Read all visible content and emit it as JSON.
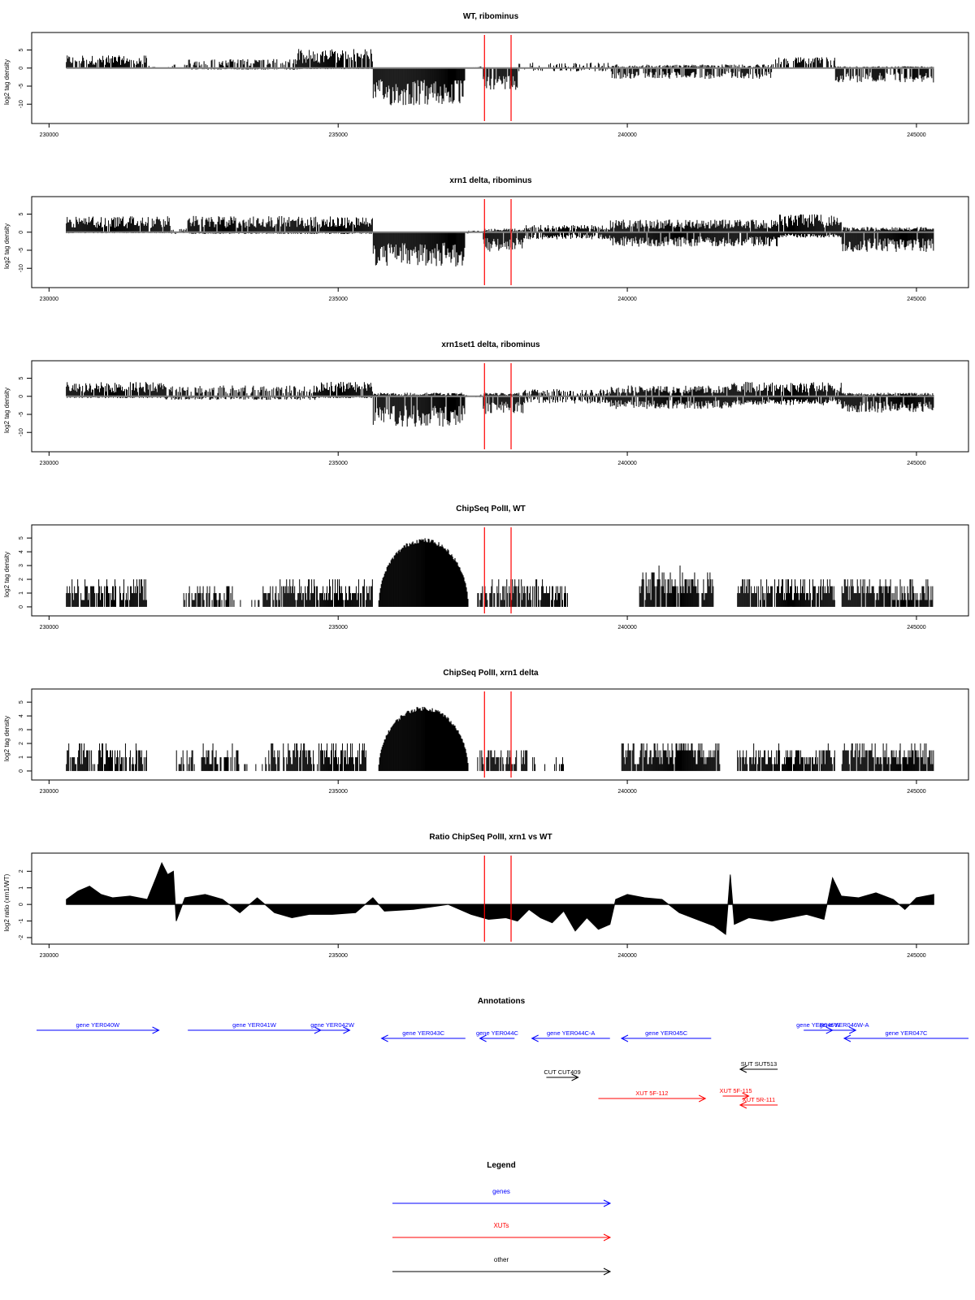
{
  "colors": {
    "gene": "#0000ff",
    "xut": "#ff0000",
    "other": "#000000",
    "marker": "#ff0000",
    "bars": "#000000",
    "frame": "#000000"
  },
  "x_ticks": [
    230000,
    235000,
    240000,
    245000
  ],
  "x_tick_labels": [
    "230000",
    "235000",
    "240000",
    "245000"
  ],
  "x_range": [
    229700,
    245900
  ],
  "data_range": [
    230300,
    245300
  ],
  "marker_lines": [
    237530,
    237990
  ],
  "chart_data": [
    {
      "type": "bar",
      "title": "WT, ribominus",
      "ylabel": "log2 tag density",
      "ylim": [
        -14,
        8.5
      ],
      "yticks": [
        5,
        0,
        -5,
        -10
      ],
      "ytick_labels": [
        "5",
        "0",
        "-5",
        "-10"
      ],
      "mode": "stranded",
      "has_baseline": true,
      "marker_lines": [
        237530,
        237990
      ],
      "segments": [
        {
          "from": 230300,
          "to": 231700,
          "pos": 3.5,
          "neg": 0,
          "density": 0.8
        },
        {
          "from": 231700,
          "to": 232400,
          "pos": 1.0,
          "neg": 0,
          "density": 0.3
        },
        {
          "from": 232400,
          "to": 234300,
          "pos": 2.5,
          "neg": 0.5,
          "density": 0.6
        },
        {
          "from": 234300,
          "to": 235600,
          "pos": 5.5,
          "neg": 0.3,
          "density": 0.9
        },
        {
          "from": 235600,
          "to": 237200,
          "pos": 0,
          "neg": 10.5,
          "density": 1.0
        },
        {
          "from": 237200,
          "to": 237500,
          "pos": 0.5,
          "neg": 0,
          "density": 0.2
        },
        {
          "from": 237500,
          "to": 238100,
          "pos": 0,
          "neg": 6.0,
          "density": 0.9
        },
        {
          "from": 238100,
          "to": 239700,
          "pos": 1.5,
          "neg": 1.0,
          "density": 0.3
        },
        {
          "from": 239700,
          "to": 242500,
          "pos": 1.0,
          "neg": 3.0,
          "density": 0.7
        },
        {
          "from": 242500,
          "to": 243600,
          "pos": 3.0,
          "neg": 0,
          "density": 0.7
        },
        {
          "from": 243600,
          "to": 245300,
          "pos": 0.5,
          "neg": 4.0,
          "density": 0.8
        }
      ]
    },
    {
      "type": "bar",
      "title": "xrn1 delta, ribominus",
      "ylabel": "log2 tag density",
      "ylim": [
        -14,
        8.5
      ],
      "yticks": [
        5,
        0,
        -5,
        -10
      ],
      "ytick_labels": [
        "5",
        "0",
        "-5",
        "-10"
      ],
      "mode": "stranded",
      "has_baseline": true,
      "marker_lines": [
        237530,
        237990
      ],
      "segments": [
        {
          "from": 230300,
          "to": 232100,
          "pos": 4.5,
          "neg": 0.3,
          "density": 0.95
        },
        {
          "from": 232100,
          "to": 232400,
          "pos": 1.0,
          "neg": 0.5,
          "density": 0.3
        },
        {
          "from": 232400,
          "to": 235600,
          "pos": 4.5,
          "neg": 0.5,
          "density": 0.95
        },
        {
          "from": 235600,
          "to": 237200,
          "pos": 0,
          "neg": 9.5,
          "density": 1.0
        },
        {
          "from": 237200,
          "to": 237500,
          "pos": 0.5,
          "neg": 0.5,
          "density": 0.3
        },
        {
          "from": 237500,
          "to": 238200,
          "pos": 1.0,
          "neg": 5.5,
          "density": 0.95
        },
        {
          "from": 238200,
          "to": 239700,
          "pos": 2.0,
          "neg": 2.0,
          "density": 0.8
        },
        {
          "from": 239700,
          "to": 242600,
          "pos": 3.5,
          "neg": 4.0,
          "density": 0.95
        },
        {
          "from": 242600,
          "to": 243700,
          "pos": 5.0,
          "neg": 1.5,
          "density": 0.95
        },
        {
          "from": 243700,
          "to": 245300,
          "pos": 1.5,
          "neg": 5.5,
          "density": 0.95
        }
      ]
    },
    {
      "type": "bar",
      "title": "xrn1set1 delta, ribominus",
      "ylabel": "log2 tag density",
      "ylim": [
        -14,
        8.5
      ],
      "yticks": [
        5,
        0,
        -5,
        -10
      ],
      "ytick_labels": [
        "5",
        "0",
        "-5",
        "-10"
      ],
      "mode": "stranded",
      "has_baseline": true,
      "marker_lines": [
        237530,
        237990
      ],
      "segments": [
        {
          "from": 230300,
          "to": 232000,
          "pos": 4.0,
          "neg": 0.5,
          "density": 0.9
        },
        {
          "from": 232000,
          "to": 234600,
          "pos": 3.0,
          "neg": 1.0,
          "density": 0.6
        },
        {
          "from": 234600,
          "to": 235600,
          "pos": 4.0,
          "neg": 0.5,
          "density": 0.9
        },
        {
          "from": 235600,
          "to": 237200,
          "pos": 1.0,
          "neg": 8.5,
          "density": 0.95
        },
        {
          "from": 237200,
          "to": 237500,
          "pos": 0.5,
          "neg": 0.5,
          "density": 0.3
        },
        {
          "from": 237500,
          "to": 238200,
          "pos": 1.0,
          "neg": 5.0,
          "density": 0.9
        },
        {
          "from": 238200,
          "to": 239700,
          "pos": 2.0,
          "neg": 2.0,
          "density": 0.6
        },
        {
          "from": 239700,
          "to": 241800,
          "pos": 3.0,
          "neg": 3.5,
          "density": 0.9
        },
        {
          "from": 241800,
          "to": 243700,
          "pos": 4.0,
          "neg": 2.5,
          "density": 0.9
        },
        {
          "from": 243700,
          "to": 245300,
          "pos": 1.0,
          "neg": 4.5,
          "density": 0.9
        }
      ]
    },
    {
      "type": "bar",
      "title": "ChipSeq PolII, WT",
      "ylabel": "log2 tag density",
      "ylim": [
        -0.3,
        5.6
      ],
      "yticks": [
        0,
        1,
        2,
        3,
        4,
        5
      ],
      "ytick_labels": [
        "0",
        "1",
        "2",
        "3",
        "4",
        "5"
      ],
      "mode": "positive",
      "has_baseline": false,
      "marker_lines": [
        237530,
        237990
      ],
      "segments": [
        {
          "from": 230300,
          "to": 231700,
          "pos": 2.0,
          "neg": 0,
          "density": 0.85
        },
        {
          "from": 231700,
          "to": 232300,
          "pos": 0,
          "neg": 0,
          "density": 0
        },
        {
          "from": 232300,
          "to": 233200,
          "pos": 1.5,
          "neg": 0,
          "density": 0.6
        },
        {
          "from": 233200,
          "to": 233700,
          "pos": 0.5,
          "neg": 0,
          "density": 0.1
        },
        {
          "from": 233700,
          "to": 235600,
          "pos": 2.0,
          "neg": 0,
          "density": 0.85
        },
        {
          "from": 235700,
          "to": 237250,
          "pos": 5.0,
          "neg": 0,
          "density": 1.0,
          "shape": "dome"
        },
        {
          "from": 237400,
          "to": 238800,
          "pos": 2.0,
          "neg": 0,
          "density": 0.75
        },
        {
          "from": 238800,
          "to": 239000,
          "pos": 1.5,
          "neg": 0,
          "density": 0.4
        },
        {
          "from": 240200,
          "to": 241500,
          "pos": 2.8,
          "neg": 0,
          "density": 0.9
        },
        {
          "from": 241900,
          "to": 243600,
          "pos": 2.2,
          "neg": 0,
          "density": 0.9
        },
        {
          "from": 243700,
          "to": 245300,
          "pos": 2.0,
          "neg": 0,
          "density": 0.9
        }
      ]
    },
    {
      "type": "bar",
      "title": "ChipSeq PolII, xrn1 delta",
      "ylabel": "log2 tag density",
      "ylim": [
        -0.3,
        5.6
      ],
      "yticks": [
        0,
        1,
        2,
        3,
        4,
        5
      ],
      "ytick_labels": [
        "0",
        "1",
        "2",
        "3",
        "4",
        "5"
      ],
      "mode": "positive",
      "has_baseline": false,
      "marker_lines": [
        237530,
        237990
      ],
      "segments": [
        {
          "from": 230300,
          "to": 231700,
          "pos": 2.0,
          "neg": 0,
          "density": 0.85
        },
        {
          "from": 231700,
          "to": 232200,
          "pos": 0.5,
          "neg": 0,
          "density": 0.05
        },
        {
          "from": 232200,
          "to": 233300,
          "pos": 1.8,
          "neg": 0,
          "density": 0.6
        },
        {
          "from": 233300,
          "to": 233800,
          "pos": 0.8,
          "neg": 0,
          "density": 0.15
        },
        {
          "from": 233800,
          "to": 235500,
          "pos": 2.0,
          "neg": 0,
          "density": 0.8
        },
        {
          "from": 235700,
          "to": 237250,
          "pos": 4.7,
          "neg": 0,
          "density": 1.0,
          "shape": "dome"
        },
        {
          "from": 237400,
          "to": 238400,
          "pos": 1.5,
          "neg": 0,
          "density": 0.7
        },
        {
          "from": 238400,
          "to": 238900,
          "pos": 1.0,
          "neg": 0,
          "density": 0.2
        },
        {
          "from": 239900,
          "to": 241600,
          "pos": 2.2,
          "neg": 0,
          "density": 0.95
        },
        {
          "from": 241900,
          "to": 243600,
          "pos": 1.8,
          "neg": 0,
          "density": 0.9
        },
        {
          "from": 243700,
          "to": 245300,
          "pos": 2.0,
          "neg": 0,
          "density": 0.95
        }
      ]
    },
    {
      "type": "area",
      "title": "Ratio ChipSeq PolII, xrn1 vs WT",
      "ylabel": "log2 ratio (xrn1/WT)",
      "ylim": [
        -2.1,
        2.8
      ],
      "yticks": [
        -2,
        -1,
        0,
        1,
        2
      ],
      "ytick_labels": [
        "-2",
        "-1",
        "0",
        "1",
        "2"
      ],
      "mode": "ratio",
      "has_baseline": false,
      "marker_lines": [
        237530,
        237990
      ],
      "points": [
        [
          230300,
          0.3
        ],
        [
          230500,
          0.8
        ],
        [
          230700,
          1.1
        ],
        [
          230900,
          0.6
        ],
        [
          231100,
          0.4
        ],
        [
          231400,
          0.5
        ],
        [
          231700,
          0.3
        ],
        [
          231850,
          1.6
        ],
        [
          231950,
          2.5
        ],
        [
          232050,
          1.8
        ],
        [
          232150,
          2.0
        ],
        [
          232200,
          -1.0
        ],
        [
          232350,
          0.4
        ],
        [
          232700,
          0.6
        ],
        [
          233000,
          0.3
        ],
        [
          233300,
          -0.5
        ],
        [
          233600,
          0.4
        ],
        [
          233900,
          -0.5
        ],
        [
          234200,
          -0.8
        ],
        [
          234500,
          -0.6
        ],
        [
          234900,
          -0.6
        ],
        [
          235300,
          -0.5
        ],
        [
          235600,
          0.4
        ],
        [
          235800,
          -0.4
        ],
        [
          236300,
          -0.3
        ],
        [
          236700,
          -0.1
        ],
        [
          236900,
          0.0
        ],
        [
          237300,
          -0.6
        ],
        [
          237600,
          -0.9
        ],
        [
          237900,
          -0.8
        ],
        [
          238100,
          -1.0
        ],
        [
          238300,
          -0.3
        ],
        [
          238500,
          -0.8
        ],
        [
          238700,
          -1.1
        ],
        [
          238900,
          -0.4
        ],
        [
          239100,
          -1.6
        ],
        [
          239300,
          -0.8
        ],
        [
          239500,
          -1.5
        ],
        [
          239700,
          -1.2
        ],
        [
          239800,
          0.3
        ],
        [
          240000,
          0.6
        ],
        [
          240300,
          0.4
        ],
        [
          240600,
          0.3
        ],
        [
          240900,
          -0.5
        ],
        [
          241200,
          -0.9
        ],
        [
          241500,
          -1.3
        ],
        [
          241700,
          -1.8
        ],
        [
          241780,
          1.8
        ],
        [
          241850,
          -1.2
        ],
        [
          242100,
          -0.8
        ],
        [
          242500,
          -1.0
        ],
        [
          242800,
          -0.8
        ],
        [
          243100,
          -0.6
        ],
        [
          243400,
          -0.9
        ],
        [
          243550,
          1.6
        ],
        [
          243700,
          0.5
        ],
        [
          244000,
          0.4
        ],
        [
          244300,
          0.7
        ],
        [
          244600,
          0.3
        ],
        [
          244800,
          -0.3
        ],
        [
          245000,
          0.4
        ],
        [
          245300,
          0.6
        ]
      ]
    }
  ],
  "annotations": {
    "title": "Annotations",
    "features": [
      {
        "label": "gene YER040W",
        "kind": "gene",
        "dir": "right",
        "x1": 229700,
        "x2": 231900,
        "row": 0
      },
      {
        "label": "gene YER041W",
        "kind": "gene",
        "dir": "right",
        "x1": 232400,
        "x2": 234700,
        "row": 0
      },
      {
        "label": "gene YER042W",
        "kind": "gene",
        "dir": "right",
        "x1": 234600,
        "x2": 235200,
        "row": 0
      },
      {
        "label": "gene YER043C",
        "kind": "gene",
        "dir": "left",
        "x1": 235750,
        "x2": 237200,
        "row": 1
      },
      {
        "label": "gene YER044C",
        "kind": "gene",
        "dir": "left",
        "x1": 237450,
        "x2": 238050,
        "row": 1
      },
      {
        "label": "gene YER044C-A",
        "kind": "gene",
        "dir": "left",
        "x1": 238350,
        "x2": 239700,
        "row": 1
      },
      {
        "label": "gene YER045C",
        "kind": "gene",
        "dir": "left",
        "x1": 239900,
        "x2": 241450,
        "row": 1
      },
      {
        "label": "gene YER046W",
        "kind": "gene",
        "dir": "right",
        "x1": 243050,
        "x2": 243550,
        "row": 0
      },
      {
        "label": "gene YER046W-A",
        "kind": "gene",
        "dir": "right",
        "x1": 243550,
        "x2": 243950,
        "row": 0
      },
      {
        "label": "gene YER047C",
        "kind": "gene",
        "dir": "left",
        "x1": 243750,
        "x2": 245900,
        "row": 1
      },
      {
        "label": "CUT CUT409",
        "kind": "other",
        "dir": "right",
        "x1": 238600,
        "x2": 239150,
        "row": 2
      },
      {
        "label": "SUT SUT513",
        "kind": "other",
        "dir": "left",
        "x1": 241950,
        "x2": 242600,
        "row": 3
      },
      {
        "label": "XUT 5F-112",
        "kind": "xut",
        "dir": "right",
        "x1": 239500,
        "x2": 241350,
        "row": 4
      },
      {
        "label": "XUT 5F-115",
        "kind": "xut",
        "dir": "right",
        "x1": 241650,
        "x2": 242100,
        "row": 5
      },
      {
        "label": "XUT 5R-111",
        "kind": "xut",
        "dir": "left",
        "x1": 241950,
        "x2": 242600,
        "row": 6
      }
    ]
  },
  "legend": {
    "title": "Legend",
    "items": [
      {
        "label": "genes",
        "kind": "gene"
      },
      {
        "label": "XUTs",
        "kind": "xut"
      },
      {
        "label": "other",
        "kind": "other"
      }
    ]
  }
}
